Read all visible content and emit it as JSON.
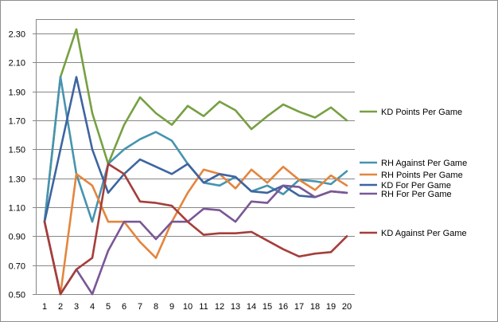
{
  "chart_data": {
    "type": "line",
    "title": "",
    "xlabel": "",
    "ylabel": "",
    "ylim": [
      0.5,
      2.4
    ],
    "xlim": [
      1,
      20
    ],
    "y_ticks": [
      "0.50",
      "0.70",
      "0.90",
      "1.10",
      "1.30",
      "1.50",
      "1.70",
      "1.90",
      "2.10",
      "2.30"
    ],
    "x_ticks": [
      "1",
      "2",
      "3",
      "4",
      "5",
      "6",
      "7",
      "8",
      "9",
      "10",
      "11",
      "12",
      "13",
      "14",
      "15",
      "16",
      "17",
      "18",
      "19",
      "20"
    ],
    "grid": "horizontal",
    "legend_placement": "right, beside line ends",
    "x": [
      1,
      2,
      3,
      4,
      5,
      6,
      7,
      8,
      9,
      10,
      11,
      12,
      13,
      14,
      15,
      16,
      17,
      18,
      19,
      20
    ],
    "series": [
      {
        "name": "KD Points Per Game",
        "color": "#77a043",
        "values": [
          1.0,
          2.0,
          2.33,
          1.75,
          1.4,
          1.67,
          1.86,
          1.75,
          1.67,
          1.8,
          1.73,
          1.83,
          1.77,
          1.64,
          1.73,
          1.81,
          1.76,
          1.72,
          1.79,
          1.7
        ]
      },
      {
        "name": "RH Against Per Game",
        "color": "#4694af",
        "values": [
          1.0,
          2.0,
          1.33,
          1.0,
          1.4,
          1.5,
          1.57,
          1.62,
          1.56,
          1.4,
          1.27,
          1.25,
          1.31,
          1.21,
          1.25,
          1.19,
          1.29,
          1.28,
          1.26,
          1.35
        ]
      },
      {
        "name": "RH Points Per Game",
        "color": "#e4853d",
        "values": [
          1.0,
          0.5,
          1.33,
          1.25,
          1.0,
          1.0,
          0.86,
          0.75,
          1.0,
          1.2,
          1.36,
          1.33,
          1.23,
          1.36,
          1.27,
          1.38,
          1.29,
          1.22,
          1.32,
          1.25
        ]
      },
      {
        "name": "KD For Per Game",
        "color": "#3e64a0",
        "values": [
          1.0,
          1.5,
          2.0,
          1.5,
          1.2,
          1.33,
          1.43,
          1.38,
          1.33,
          1.4,
          1.27,
          1.33,
          1.31,
          1.21,
          1.2,
          1.25,
          1.18,
          1.17,
          1.21,
          1.2
        ]
      },
      {
        "name": "RH For Per Game",
        "color": "#7a5796",
        "values": [
          1.0,
          0.5,
          0.67,
          0.5,
          0.8,
          1.0,
          1.0,
          0.88,
          1.0,
          1.0,
          1.09,
          1.08,
          1.0,
          1.14,
          1.13,
          1.25,
          1.24,
          1.17,
          1.21,
          1.2
        ]
      },
      {
        "name": "KD Against Per Game",
        "color": "#a53e3a",
        "values": [
          1.0,
          0.5,
          0.67,
          0.75,
          1.4,
          1.33,
          1.14,
          1.13,
          1.11,
          1.0,
          0.91,
          0.92,
          0.92,
          0.93,
          0.87,
          0.81,
          0.76,
          0.78,
          0.79,
          0.9
        ]
      }
    ],
    "legend": [
      {
        "label": "KD Points Per Game",
        "series": 0
      },
      {
        "label": "RH Against Per Game",
        "series": 1
      },
      {
        "label": "RH Points Per Game",
        "series": 2
      },
      {
        "label": "KD For Per Game",
        "series": 3
      },
      {
        "label": "RH For Per Game",
        "series": 4
      },
      {
        "label": "KD Against Per Game",
        "series": 5
      }
    ]
  }
}
